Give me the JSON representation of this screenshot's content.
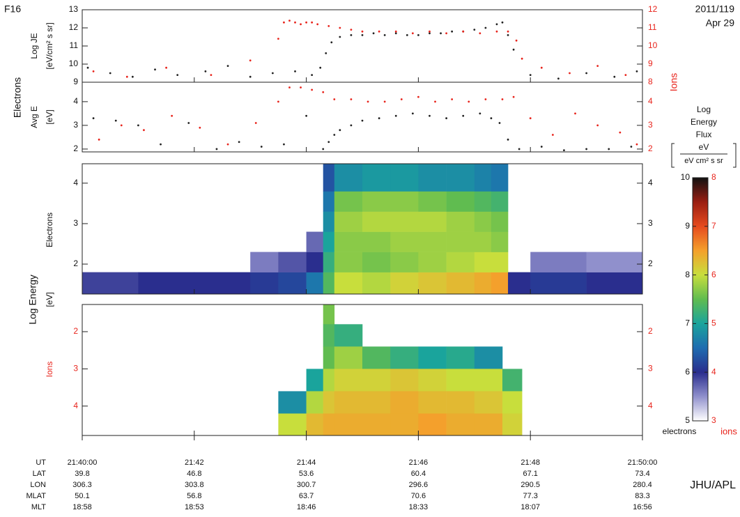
{
  "header": {
    "satellite": "F16",
    "date": "2011/119",
    "day": "Apr 29",
    "credit": "JHU/APL"
  },
  "energy_axis": {
    "label": "Log Energy",
    "unit": "[eV]"
  },
  "chart_data": [
    {
      "type": "scatter",
      "ylabel": "Log JE",
      "yunit": "[eV/cm² s sr]",
      "xlim": [
        40,
        50
      ],
      "ylim": [
        9,
        13
      ],
      "yticks": [
        9,
        10,
        11,
        12,
        13
      ],
      "y2lim": [
        8,
        12
      ],
      "y2ticks": [
        8,
        9,
        10,
        11,
        12
      ],
      "left_color": "#111111",
      "right_color": "#e8241c",
      "series": [
        {
          "name": "Electrons",
          "color": "#222222",
          "x": [
            40.1,
            40.5,
            40.9,
            41.3,
            41.7,
            42.2,
            42.6,
            43.0,
            43.4,
            43.8,
            44.1,
            44.25,
            44.35,
            44.45,
            44.6,
            44.8,
            45.0,
            45.2,
            45.4,
            45.6,
            45.8,
            46.0,
            46.2,
            46.4,
            46.6,
            46.8,
            47.0,
            47.2,
            47.4,
            47.5,
            47.6,
            47.7,
            48.0,
            48.5,
            49.0,
            49.5,
            49.9
          ],
          "values": [
            9.8,
            9.5,
            9.3,
            9.7,
            9.4,
            9.6,
            9.9,
            9.3,
            9.5,
            9.6,
            9.4,
            9.8,
            10.6,
            11.2,
            11.5,
            11.6,
            11.6,
            11.7,
            11.6,
            11.7,
            11.6,
            11.6,
            11.7,
            11.7,
            11.8,
            11.8,
            11.9,
            12.0,
            12.2,
            12.3,
            11.6,
            10.8,
            9.4,
            9.2,
            9.5,
            9.3,
            9.6
          ]
        },
        {
          "name": "Ions",
          "color": "#e8241c",
          "axis": "y2",
          "x": [
            40.2,
            40.8,
            41.5,
            42.3,
            43.0,
            43.5,
            43.6,
            43.7,
            43.8,
            43.9,
            44.0,
            44.1,
            44.2,
            44.4,
            44.6,
            44.8,
            45.0,
            45.3,
            45.6,
            45.9,
            46.2,
            46.5,
            46.8,
            47.1,
            47.4,
            47.6,
            47.75,
            47.85,
            48.2,
            48.7,
            49.2,
            49.7
          ],
          "values": [
            8.6,
            8.3,
            8.8,
            8.4,
            9.2,
            10.4,
            11.3,
            11.4,
            11.3,
            11.2,
            11.3,
            11.3,
            11.2,
            11.1,
            11.0,
            10.9,
            10.8,
            10.8,
            10.8,
            10.7,
            10.8,
            10.7,
            10.8,
            10.7,
            10.8,
            10.8,
            10.3,
            9.3,
            8.8,
            8.5,
            8.9,
            8.4
          ]
        }
      ]
    },
    {
      "type": "scatter",
      "ylabel": "Avg E",
      "yunit": "[eV]",
      "xlim": [
        40,
        50
      ],
      "ylim": [
        1.88,
        4.82
      ],
      "yticks": [
        2,
        3,
        4
      ],
      "y2lim": [
        1.88,
        4.82
      ],
      "y2ticks": [
        2,
        3,
        4
      ],
      "left_color": "#111111",
      "right_color": "#e8241c",
      "series": [
        {
          "color": "#222222",
          "x": [
            40.2,
            40.6,
            41.0,
            41.4,
            41.9,
            42.4,
            42.8,
            43.2,
            43.6,
            44.0,
            44.3,
            44.4,
            44.5,
            44.6,
            44.8,
            45.0,
            45.3,
            45.6,
            45.9,
            46.2,
            46.5,
            46.8,
            47.1,
            47.3,
            47.45,
            47.6,
            47.8,
            48.2,
            48.6,
            49.0,
            49.4,
            49.8
          ],
          "values": [
            3.3,
            3.2,
            3.0,
            2.2,
            3.1,
            2.0,
            2.3,
            2.1,
            2.2,
            3.4,
            2.0,
            2.3,
            2.6,
            2.8,
            3.0,
            3.2,
            3.3,
            3.4,
            3.5,
            3.4,
            3.3,
            3.4,
            3.5,
            3.3,
            3.1,
            2.4,
            2.0,
            2.1,
            1.95,
            2.0,
            2.0,
            2.1
          ]
        },
        {
          "color": "#e8241c",
          "axis": "y2",
          "x": [
            40.3,
            40.7,
            41.1,
            41.6,
            42.1,
            42.6,
            43.1,
            43.5,
            43.7,
            43.9,
            44.1,
            44.3,
            44.5,
            44.8,
            45.1,
            45.4,
            45.7,
            46.0,
            46.3,
            46.6,
            46.9,
            47.2,
            47.5,
            47.7,
            48.0,
            48.4,
            48.8,
            49.2,
            49.6,
            49.9
          ],
          "values": [
            2.4,
            3.0,
            2.8,
            3.4,
            2.9,
            2.2,
            3.1,
            4.0,
            4.6,
            4.6,
            4.5,
            4.4,
            4.1,
            4.1,
            4.0,
            4.0,
            4.1,
            4.2,
            4.0,
            4.1,
            4.0,
            4.1,
            4.1,
            4.2,
            3.3,
            2.6,
            3.5,
            3.0,
            2.7,
            2.2
          ]
        }
      ]
    },
    {
      "type": "heatmap",
      "ylabel": "Electrons",
      "scale": "zlim",
      "xlim": [
        40,
        50
      ],
      "ylim": [
        1.26,
        4.48
      ],
      "yticks": [
        2,
        3,
        4
      ],
      "left_color": "#111111",
      "right_color": "#111111",
      "x_edges": [
        40,
        41,
        42,
        43,
        43.5,
        44,
        44.3,
        44.5,
        45,
        45.5,
        46,
        46.5,
        47,
        47.3,
        47.6,
        48,
        49,
        50
      ],
      "y_edges": [
        1.26,
        1.8,
        2.3,
        2.8,
        3.3,
        3.8,
        4.48
      ],
      "z": [
        [
          5.9,
          null,
          null,
          null,
          null,
          null
        ],
        [
          6.0,
          null,
          null,
          null,
          null,
          null
        ],
        [
          6.0,
          null,
          null,
          null,
          null,
          null
        ],
        [
          6.1,
          5.6,
          null,
          null,
          null,
          null
        ],
        [
          6.2,
          5.8,
          null,
          null,
          null,
          null
        ],
        [
          6.6,
          6.0,
          5.7,
          null,
          null,
          null
        ],
        [
          7.4,
          7.2,
          7.0,
          6.8,
          6.6,
          6.3
        ],
        [
          8.0,
          7.7,
          7.7,
          7.8,
          7.6,
          6.8
        ],
        [
          7.9,
          7.6,
          7.7,
          7.9,
          7.7,
          6.9
        ],
        [
          8.1,
          7.7,
          7.8,
          7.9,
          7.7,
          6.9
        ],
        [
          8.2,
          7.8,
          7.8,
          7.9,
          7.6,
          6.8
        ],
        [
          8.3,
          7.9,
          7.8,
          7.8,
          7.5,
          6.8
        ],
        [
          8.4,
          8.0,
          7.8,
          7.7,
          7.4,
          6.7
        ],
        [
          8.5,
          8.0,
          7.7,
          7.6,
          7.3,
          6.6
        ],
        [
          6.0,
          null,
          null,
          null,
          null,
          null
        ],
        [
          6.1,
          5.6,
          null,
          null,
          null,
          null
        ],
        [
          6.0,
          5.5,
          null,
          null,
          null,
          null
        ]
      ]
    },
    {
      "type": "heatmap",
      "ylabel": "Ions",
      "scale": "z2lim",
      "xlim": [
        40,
        50
      ],
      "ylim": [
        4.79,
        1.27
      ],
      "yticks": [
        2,
        3,
        4
      ],
      "left_color": "#e8241c",
      "right_color": "#e8241c",
      "xticks": [
        {
          "value": 40,
          "label": "21:40:00"
        },
        {
          "value": 42,
          "label": "21:42"
        },
        {
          "value": 44,
          "label": "21:44"
        },
        {
          "value": 46,
          "label": "21:46"
        },
        {
          "value": 48,
          "label": "21:48"
        },
        {
          "value": 50,
          "label": "21:50:00"
        }
      ],
      "x_edges": [
        40,
        43.5,
        44,
        44.3,
        44.5,
        45,
        45.5,
        46,
        46.5,
        47,
        47.5,
        47.85,
        50
      ],
      "y_edges": [
        1.27,
        1.8,
        2.4,
        3.0,
        3.6,
        4.2,
        4.79
      ],
      "z": [
        [
          null,
          null,
          null,
          null,
          null,
          null
        ],
        [
          null,
          null,
          null,
          null,
          4.8,
          6.0
        ],
        [
          null,
          null,
          null,
          5.0,
          5.9,
          6.3
        ],
        [
          5.6,
          5.4,
          5.5,
          5.9,
          6.2,
          6.4
        ],
        [
          null,
          5.2,
          5.8,
          6.1,
          6.3,
          6.4
        ],
        [
          null,
          null,
          5.4,
          6.1,
          6.3,
          6.4
        ],
        [
          null,
          null,
          5.2,
          6.2,
          6.4,
          6.4
        ],
        [
          null,
          null,
          5.0,
          6.1,
          6.3,
          6.5
        ],
        [
          null,
          null,
          5.1,
          6.0,
          6.3,
          6.4
        ],
        [
          null,
          null,
          4.8,
          6.0,
          6.2,
          6.4
        ],
        [
          null,
          null,
          null,
          5.3,
          6.0,
          6.1
        ],
        [
          null,
          null,
          null,
          null,
          null,
          null
        ]
      ]
    }
  ],
  "colorbar": {
    "title": [
      "Log",
      "Energy",
      "Flux"
    ],
    "unit_num": "eV",
    "unit_den": "eV cm² s sr",
    "zlim": [
      5,
      10
    ],
    "zticks": [
      5,
      6,
      7,
      8,
      9,
      10
    ],
    "z2lim": [
      3,
      8
    ],
    "z2ticks": [
      3,
      4,
      5,
      6,
      7,
      8
    ],
    "left_label": "electrons",
    "right_label": "ions",
    "colormap": [
      "#ffffff",
      "#9090cc",
      "#2a2e8e",
      "#1e6cb0",
      "#1aa49c",
      "#60bc50",
      "#c8de3c",
      "#f4a02c",
      "#e64a1e",
      "#9a1e12",
      "#111111"
    ]
  },
  "ephemeris": {
    "rows": [
      {
        "label": "UT"
      },
      {
        "label": "LAT",
        "values": [
          39.8,
          46.8,
          53.6,
          60.4,
          67.1,
          73.4
        ]
      },
      {
        "label": "LON",
        "values": [
          306.3,
          303.8,
          300.7,
          296.6,
          290.5,
          280.4
        ]
      },
      {
        "label": "MLAT",
        "values": [
          50.1,
          56.8,
          63.7,
          70.6,
          77.3,
          83.3
        ]
      },
      {
        "label": "MLT",
        "values": [
          "18:58",
          "18:53",
          "18:46",
          "18:33",
          "18:07",
          "16:56"
        ]
      }
    ]
  }
}
